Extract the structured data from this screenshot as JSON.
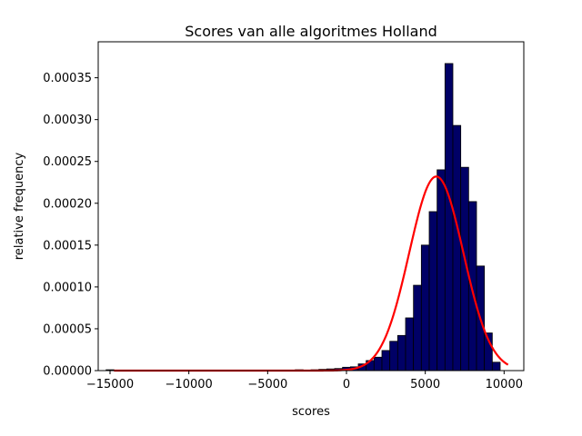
{
  "chart_data": {
    "type": "bar",
    "title": "Scores van alle algoritmes Holland",
    "xlabel": "scores",
    "ylabel": "relative frequency",
    "xlim": [
      -15750,
      11250
    ],
    "ylim": [
      0,
      0.000393
    ],
    "xticks": [
      -15000,
      -10000,
      -5000,
      0,
      5000,
      10000
    ],
    "xtick_labels": [
      "−15000",
      "−10000",
      "−5000",
      "0",
      "5000",
      "10000"
    ],
    "yticks": [
      0,
      5e-05,
      0.0001,
      0.00015,
      0.0002,
      0.00025,
      0.0003,
      0.00035
    ],
    "ytick_labels": [
      "0.00000",
      "0.00005",
      "0.00010",
      "0.00015",
      "0.00020",
      "0.00025",
      "0.00030",
      "0.00035"
    ],
    "grid": false,
    "histogram": {
      "bin_edges": [
        -15250,
        -14750,
        -14250,
        -13750,
        -13250,
        -12750,
        -12250,
        -11750,
        -11250,
        -10750,
        -10250,
        -9750,
        -9250,
        -8750,
        -8250,
        -7750,
        -7250,
        -6750,
        -6250,
        -5750,
        -5250,
        -4750,
        -4250,
        -3750,
        -3250,
        -2750,
        -2250,
        -1750,
        -1250,
        -750,
        -250,
        250,
        750,
        1250,
        1750,
        2250,
        2750,
        3250,
        3750,
        4250,
        4750,
        5250,
        5750,
        6250,
        6750,
        7250,
        7750,
        8250,
        8750,
        9250
      ],
      "values": [
        1e-06,
        0,
        0,
        0,
        0,
        0,
        0,
        0,
        0,
        0,
        0,
        0,
        0,
        0,
        0,
        0,
        0,
        0,
        0,
        0,
        0,
        0,
        0,
        3e-07,
        1e-06,
        5e-07,
        1e-06,
        1.5e-06,
        2e-06,
        2.5e-06,
        4e-06,
        4.5e-06,
        8e-06,
        1.2e-05,
        1.6e-05,
        2.4e-05,
        3.5e-05,
        4.2e-05,
        6.3e-05,
        0.000102,
        0.00015,
        0.00019,
        0.00024,
        0.000367,
        0.000293,
        0.000243,
        0.000202,
        0.000125,
        4.5e-05,
        1e-05
      ]
    },
    "fit_curve": {
      "type": "normal",
      "mean": 5700,
      "std": 1720,
      "peak": 0.000232,
      "x_range": [
        -14750,
        10250
      ]
    },
    "colors": {
      "bars": "#000066",
      "bar_edge": "#000000",
      "curve": "#ff0000"
    }
  }
}
